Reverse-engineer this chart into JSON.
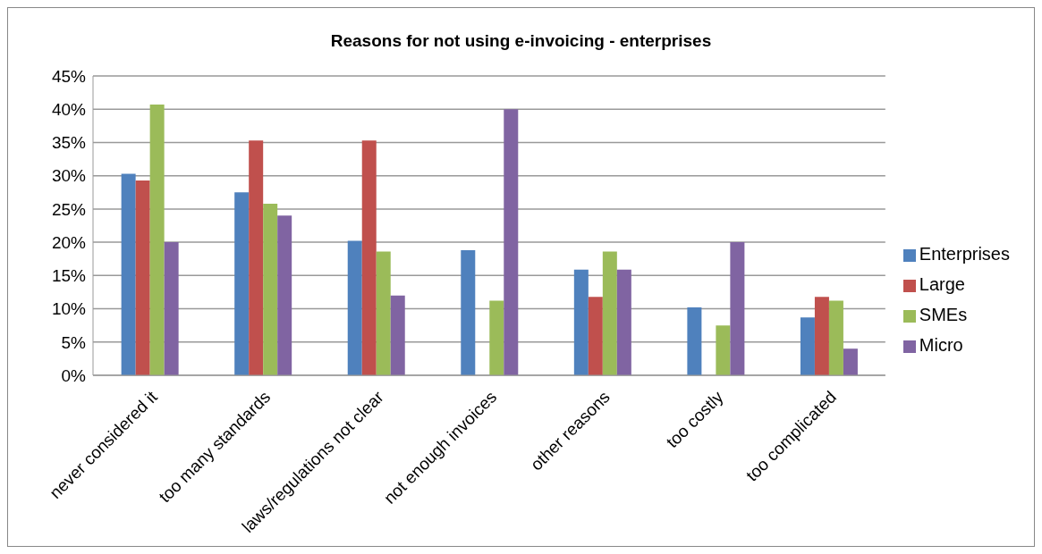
{
  "chart_data": {
    "type": "bar",
    "title": "Reasons for not using e-invoicing - enterprises",
    "categories": [
      "never considered it",
      "too many standards",
      "laws/regulations not clear",
      "not enough invoices",
      "other reasons",
      "too costly",
      "too complicated"
    ],
    "series": [
      {
        "name": "Enterprises",
        "color": "#4f81bd",
        "values": [
          30.3,
          27.5,
          20.2,
          18.8,
          15.9,
          10.2,
          8.7
        ]
      },
      {
        "name": "Large",
        "color": "#c0504d",
        "values": [
          29.3,
          35.3,
          35.3,
          0,
          11.8,
          0,
          11.8
        ]
      },
      {
        "name": "SMEs",
        "color": "#9bbb59",
        "values": [
          40.7,
          25.8,
          18.6,
          11.2,
          18.6,
          7.5,
          11.2
        ]
      },
      {
        "name": "Micro",
        "color": "#8064a2",
        "values": [
          20.0,
          24.0,
          12.0,
          40.0,
          15.9,
          20.0,
          4.0
        ]
      }
    ],
    "ylim": [
      0,
      45
    ],
    "yticks": [
      {
        "value": 0,
        "label": "0%"
      },
      {
        "value": 5,
        "label": "5%"
      },
      {
        "value": 10,
        "label": "10%"
      },
      {
        "value": 15,
        "label": "15%"
      },
      {
        "value": 20,
        "label": "20%"
      },
      {
        "value": 25,
        "label": "25%"
      },
      {
        "value": 30,
        "label": "30%"
      },
      {
        "value": 35,
        "label": "35%"
      },
      {
        "value": 40,
        "label": "40%"
      },
      {
        "value": 45,
        "label": "45%"
      }
    ],
    "grid": "y",
    "legend": "right"
  }
}
